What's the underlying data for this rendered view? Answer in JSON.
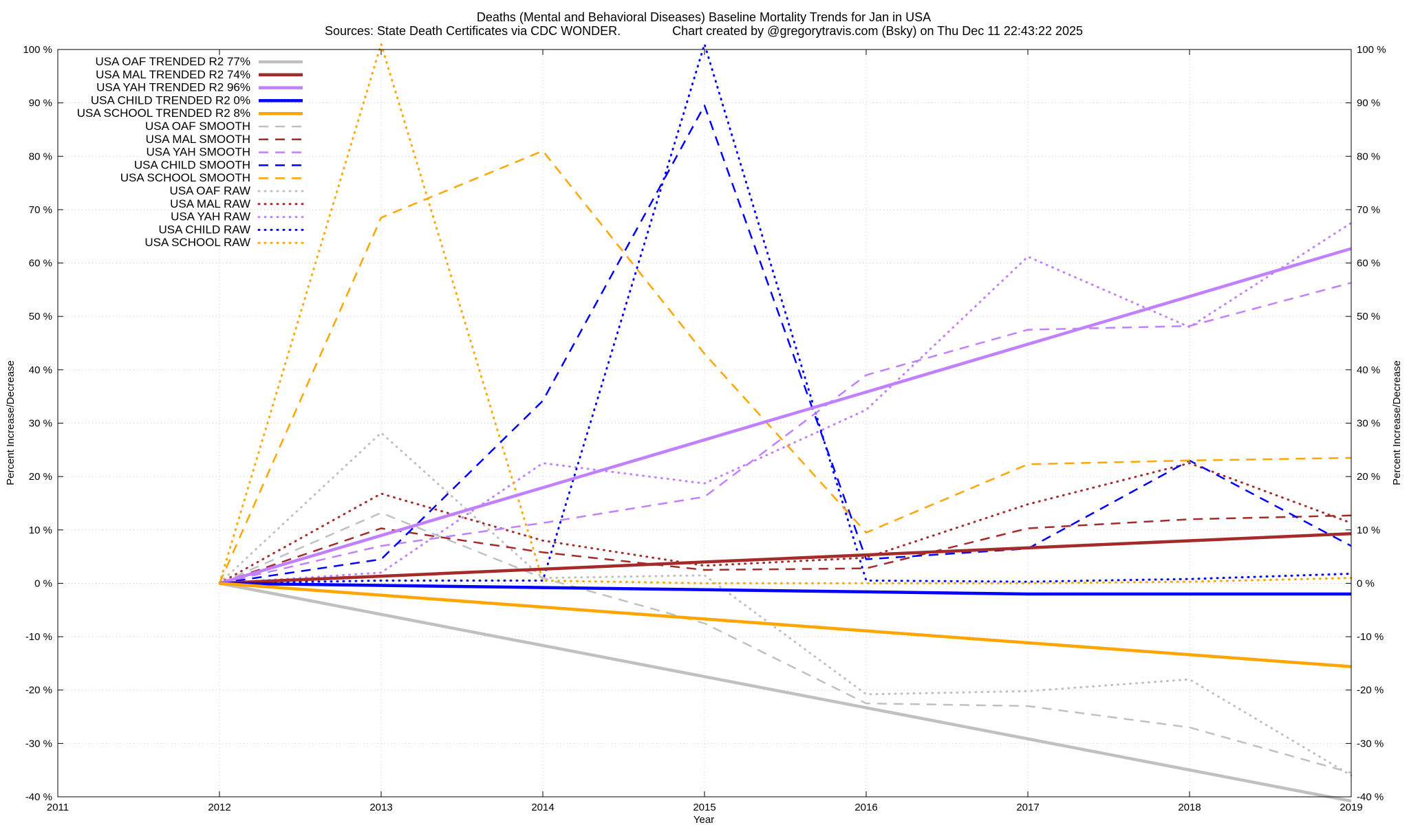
{
  "chart_data": {
    "type": "line",
    "title": "Deaths (Mental and Behavioral Diseases)  Baseline Mortality Trends for Jan in USA",
    "subtitle": "Sources: State Death Certificates via CDC WONDER.               Chart created by @gregorytravis.com (Bsky) on Thu Dec 11 22:43:22 2025",
    "xlabel": "Year",
    "ylabel": "Percent Increase/Decrease",
    "ylabel_right": "Percent Increase/Decrease",
    "xlim": [
      2011,
      2019
    ],
    "ylim": [
      -40,
      100
    ],
    "x_ticks": [
      2011,
      2012,
      2013,
      2014,
      2015,
      2016,
      2017,
      2018,
      2019
    ],
    "x_tick_labels": [
      "2011",
      "2012",
      "2013",
      "2014",
      "2015",
      "2016",
      "2017",
      "2018",
      "2019"
    ],
    "y_ticks": [
      -40,
      -30,
      -20,
      -10,
      0,
      10,
      20,
      30,
      40,
      50,
      60,
      70,
      80,
      90,
      100
    ],
    "y_tick_labels": [
      "-40 %",
      "-30 %",
      "-20 %",
      "-10 %",
      "0 %",
      "10 %",
      "20 %",
      "30 %",
      "40 %",
      "50 %",
      "60 %",
      "70 %",
      "80 %",
      "90 %",
      "100 %"
    ],
    "grid": true,
    "legend_position": "top-left",
    "series": [
      {
        "name": "USA OAF TRENDED R2  77%",
        "style": "solid",
        "color": "#c0c0c0",
        "x": [
          2012,
          2019
        ],
        "values": [
          0,
          -40.8
        ]
      },
      {
        "name": "USA MAL TRENDED R2  74%",
        "style": "solid",
        "color": "#a52a2a",
        "x": [
          2012,
          2019
        ],
        "values": [
          0,
          9.3
        ]
      },
      {
        "name": "USA YAH TRENDED R2  96%",
        "style": "solid",
        "color": "#c080ff",
        "x": [
          2012,
          2019
        ],
        "values": [
          0,
          62.7
        ]
      },
      {
        "name": "USA CHILD TRENDED R2   0%",
        "style": "solid",
        "color": "#0000ff",
        "x": [
          2012,
          2017,
          2019
        ],
        "values": [
          0,
          -2.0,
          -2.0
        ]
      },
      {
        "name": "USA SCHOOL TRENDED R2   8%",
        "style": "solid",
        "color": "#ffa500",
        "x": [
          2012,
          2019
        ],
        "values": [
          0,
          -15.6
        ]
      },
      {
        "name": "USA OAF SMOOTH",
        "style": "dashed",
        "color": "#c0c0c0",
        "x": [
          2012,
          2013,
          2014,
          2015,
          2016,
          2017,
          2018,
          2019
        ],
        "values": [
          0,
          13.2,
          1.0,
          -7.5,
          -22.5,
          -23.0,
          -27.0,
          -35.5
        ]
      },
      {
        "name": "USA MAL SMOOTH",
        "style": "dashed",
        "color": "#a52a2a",
        "x": [
          2012,
          2013,
          2014,
          2015,
          2016,
          2017,
          2018,
          2019
        ],
        "values": [
          0,
          10.3,
          5.8,
          2.5,
          2.8,
          10.3,
          12.0,
          12.7
        ]
      },
      {
        "name": "USA YAH SMOOTH",
        "style": "dashed",
        "color": "#c080ff",
        "x": [
          2012,
          2013,
          2014,
          2015,
          2016,
          2017,
          2018,
          2019
        ],
        "values": [
          0,
          7.0,
          11.3,
          16.2,
          39.0,
          47.5,
          48.2,
          56.3
        ]
      },
      {
        "name": "USA CHILD SMOOTH",
        "style": "dashed",
        "color": "#0000ff",
        "x": [
          2012,
          2013,
          2014,
          2015,
          2016,
          2017,
          2018,
          2019
        ],
        "values": [
          0,
          4.5,
          34.2,
          89.5,
          4.5,
          6.5,
          23.0,
          7.0
        ]
      },
      {
        "name": "USA SCHOOL SMOOTH",
        "style": "dashed",
        "color": "#ffa500",
        "x": [
          2012,
          2013,
          2014,
          2015,
          2016,
          2017,
          2018,
          2019
        ],
        "values": [
          0,
          68.5,
          81.0,
          43.0,
          9.5,
          22.3,
          23.0,
          23.5
        ]
      },
      {
        "name": "USA OAF RAW",
        "style": "dotted",
        "color": "#c0c0c0",
        "x": [
          2012,
          2013,
          2014,
          2015,
          2016,
          2017,
          2018,
          2019
        ],
        "values": [
          0,
          28.2,
          1.0,
          1.5,
          -20.8,
          -20.2,
          -18.0,
          -36.0
        ]
      },
      {
        "name": "USA MAL RAW",
        "style": "dotted",
        "color": "#a52a2a",
        "x": [
          2012,
          2013,
          2014,
          2015,
          2016,
          2017,
          2018,
          2019
        ],
        "values": [
          0,
          16.8,
          8.0,
          3.3,
          4.8,
          14.8,
          22.5,
          11.3
        ]
      },
      {
        "name": "USA YAH RAW",
        "style": "dotted",
        "color": "#c080ff",
        "x": [
          2012,
          2013,
          2014,
          2015,
          2016,
          2017,
          2018,
          2019
        ],
        "values": [
          0,
          2.0,
          22.5,
          18.7,
          32.5,
          61.2,
          48.0,
          67.5
        ]
      },
      {
        "name": "USA CHILD RAW",
        "style": "dotted",
        "color": "#0000ff",
        "x": [
          2012,
          2013,
          2014,
          2015,
          2016,
          2017,
          2018,
          2019
        ],
        "values": [
          0,
          0.5,
          0.5,
          101.0,
          0.5,
          0.3,
          0.8,
          1.8
        ]
      },
      {
        "name": "USA SCHOOL RAW",
        "style": "dotted",
        "color": "#ffa500",
        "x": [
          2012,
          2013,
          2014,
          2015,
          2016,
          2017,
          2018,
          2019
        ],
        "values": [
          0,
          101.0,
          0.5,
          0.0,
          0.0,
          0.0,
          0.3,
          1.0
        ]
      }
    ]
  }
}
